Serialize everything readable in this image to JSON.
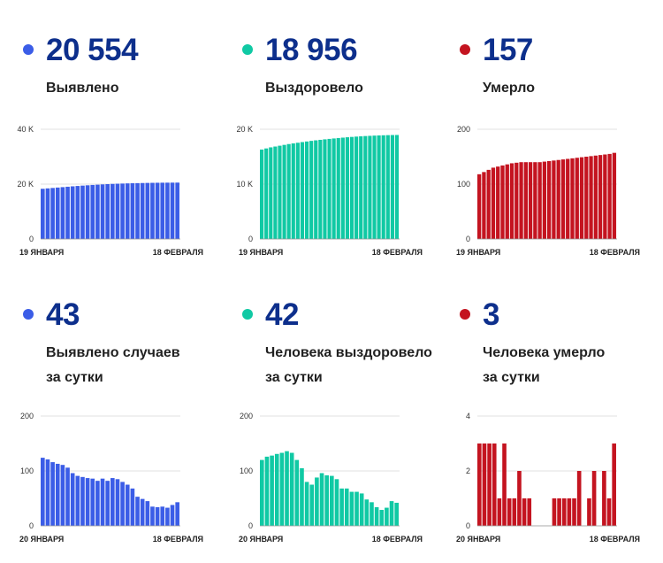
{
  "colors": {
    "blue": "#3b5de7",
    "green": "#10c9a4",
    "red": "#c41420",
    "number": "#0d2f8c"
  },
  "panels": [
    {
      "value": "20 554",
      "label_lines": [
        "Выявлено"
      ]
    },
    {
      "value": "18 956",
      "label_lines": [
        "Выздоровело"
      ]
    },
    {
      "value": "157",
      "label_lines": [
        "Умерло"
      ]
    },
    {
      "value": "43",
      "label_lines": [
        "Выявлено случаев",
        "за сутки"
      ]
    },
    {
      "value": "42",
      "label_lines": [
        "Человека выздоровело",
        "за сутки"
      ]
    },
    {
      "value": "3",
      "label_lines": [
        "Человека умерло",
        "за сутки"
      ]
    }
  ],
  "chart_data": [
    {
      "type": "bar",
      "color": "blue",
      "yticks": [
        "0",
        "20 K",
        "40 K"
      ],
      "ytick_values": [
        0,
        20000,
        40000
      ],
      "ylim": [
        0,
        40000
      ],
      "x_start_label": "19 ЯНВАРЯ",
      "x_end_label": "18 ФЕВРАЛЯ",
      "values": [
        18300,
        18450,
        18600,
        18750,
        18900,
        19050,
        19200,
        19330,
        19460,
        19580,
        19700,
        19800,
        19900,
        20000,
        20080,
        20150,
        20210,
        20270,
        20320,
        20360,
        20400,
        20440,
        20470,
        20500,
        20520,
        20535,
        20545,
        20554
      ]
    },
    {
      "type": "bar",
      "color": "green",
      "yticks": [
        "0",
        "10 K",
        "20 K"
      ],
      "ytick_values": [
        0,
        10000,
        20000
      ],
      "ylim": [
        0,
        20000
      ],
      "x_start_label": "19 ЯНВАРЯ",
      "x_end_label": "18 ФЕВРАЛЯ",
      "values": [
        16300,
        16500,
        16700,
        16850,
        17000,
        17150,
        17300,
        17420,
        17540,
        17660,
        17770,
        17880,
        17980,
        18070,
        18160,
        18240,
        18320,
        18400,
        18470,
        18540,
        18600,
        18660,
        18710,
        18760,
        18800,
        18840,
        18870,
        18900,
        18925,
        18945,
        18956
      ]
    },
    {
      "type": "bar",
      "color": "red",
      "yticks": [
        "0",
        "100",
        "200"
      ],
      "ytick_values": [
        0,
        100,
        200
      ],
      "ylim": [
        0,
        200
      ],
      "x_start_label": "19 ЯНВАРЯ",
      "x_end_label": "18 ФЕВРАЛЯ",
      "values": [
        118,
        122,
        126,
        130,
        132,
        134,
        136,
        138,
        139,
        140,
        140,
        140,
        140,
        140,
        141,
        142,
        143,
        144,
        145,
        146,
        147,
        148,
        149,
        150,
        151,
        152,
        153,
        154,
        155,
        157
      ]
    },
    {
      "type": "bar",
      "color": "blue",
      "yticks": [
        "0",
        "100",
        "200"
      ],
      "ytick_values": [
        0,
        100,
        200
      ],
      "ylim": [
        0,
        200
      ],
      "x_start_label": "20 ЯНВАРЯ",
      "x_end_label": "18 ФЕВРАЛЯ",
      "values": [
        124,
        121,
        116,
        113,
        111,
        106,
        96,
        91,
        89,
        87,
        86,
        82,
        86,
        82,
        87,
        85,
        80,
        75,
        68,
        53,
        49,
        45,
        35,
        34,
        35,
        33,
        38,
        43
      ]
    },
    {
      "type": "bar",
      "color": "green",
      "yticks": [
        "0",
        "100",
        "200"
      ],
      "ytick_values": [
        0,
        100,
        200
      ],
      "ylim": [
        0,
        200
      ],
      "x_start_label": "20 ЯНВАРЯ",
      "x_end_label": "18 ФЕВРАЛЯ",
      "values": [
        120,
        126,
        128,
        131,
        133,
        136,
        133,
        120,
        105,
        80,
        75,
        88,
        96,
        92,
        91,
        85,
        68,
        68,
        62,
        62,
        59,
        48,
        43,
        34,
        29,
        33,
        45,
        42
      ]
    },
    {
      "type": "bar",
      "color": "red",
      "yticks": [
        "0",
        "2",
        "4"
      ],
      "ytick_values": [
        0,
        2,
        4
      ],
      "ylim": [
        0,
        4
      ],
      "x_start_label": "20 ЯНВАРЯ",
      "x_end_label": "18 ФЕВРАЛЯ",
      "values": [
        3,
        3,
        3,
        3,
        1,
        3,
        1,
        1,
        2,
        1,
        1,
        0,
        0,
        0,
        0,
        1,
        1,
        1,
        1,
        1,
        2,
        0,
        1,
        2,
        0,
        2,
        1,
        3
      ]
    }
  ]
}
